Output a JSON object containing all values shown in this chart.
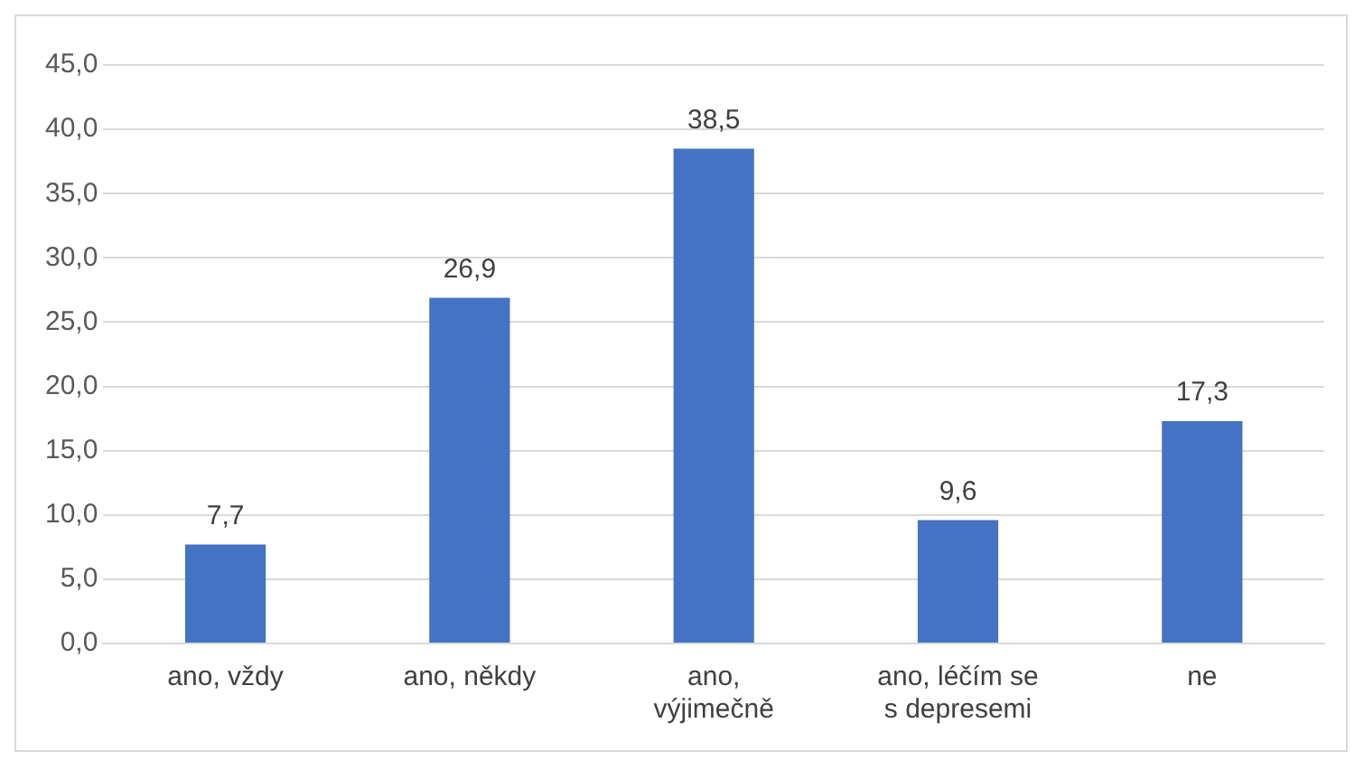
{
  "chart_data": {
    "type": "bar",
    "categories": [
      "ano, vždy",
      "ano, někdy",
      "ano, výjimečně",
      "ano, léčím se s depresemi",
      "ne"
    ],
    "values": [
      7.7,
      26.9,
      38.5,
      9.6,
      17.3
    ],
    "value_labels": [
      "7,7",
      "26,9",
      "38,5",
      "9,6",
      "17,3"
    ],
    "color": "#4472c4",
    "ylim": [
      0,
      45
    ],
    "yticks": [
      {
        "value": 0,
        "label": "0,0"
      },
      {
        "value": 5,
        "label": "5,0"
      },
      {
        "value": 10,
        "label": "10,0"
      },
      {
        "value": 15,
        "label": "15,0"
      },
      {
        "value": 20,
        "label": "20,0"
      },
      {
        "value": 25,
        "label": "25,0"
      },
      {
        "value": 30,
        "label": "30,0"
      },
      {
        "value": 35,
        "label": "35,0"
      },
      {
        "value": 40,
        "label": "40,0"
      },
      {
        "value": 45,
        "label": "45,0"
      }
    ],
    "grid": "y"
  }
}
